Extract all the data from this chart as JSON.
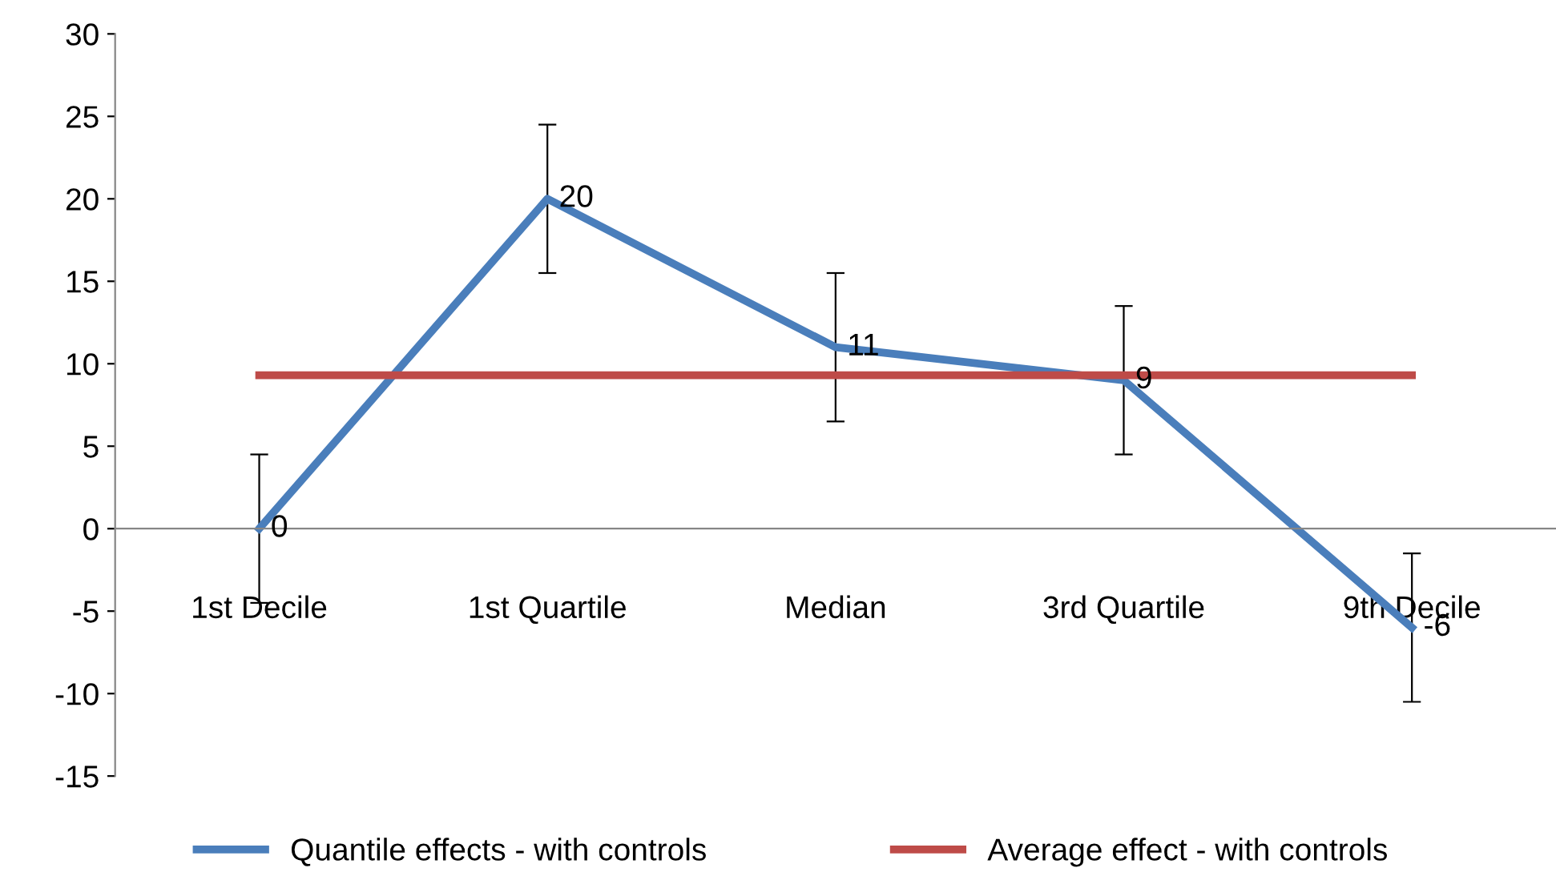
{
  "chart_data": {
    "type": "line",
    "categories": [
      "1st Decile",
      "1st Quartile",
      "Median",
      "3rd Quartile",
      "9th Decile"
    ],
    "series": [
      {
        "name": "Quantile effects - with controls",
        "color": "#4a7ebb",
        "values": [
          0,
          20,
          11,
          9,
          -6
        ],
        "errors": [
          4.5,
          4.5,
          4.5,
          4.5,
          4.5
        ],
        "value_labels": [
          "0",
          "20",
          "11",
          "9",
          "-6"
        ]
      },
      {
        "name": "Average effect - with controls",
        "color": "#be4b48",
        "values": [
          9.3,
          9.3,
          9.3,
          9.3,
          9.3
        ]
      }
    ],
    "ylim": [
      -15,
      30
    ],
    "yticks": [
      -15,
      -10,
      -5,
      0,
      5,
      10,
      15,
      20,
      25,
      30
    ],
    "grid": false,
    "legend": "bottom",
    "marker": "none",
    "line_style": "solid"
  }
}
